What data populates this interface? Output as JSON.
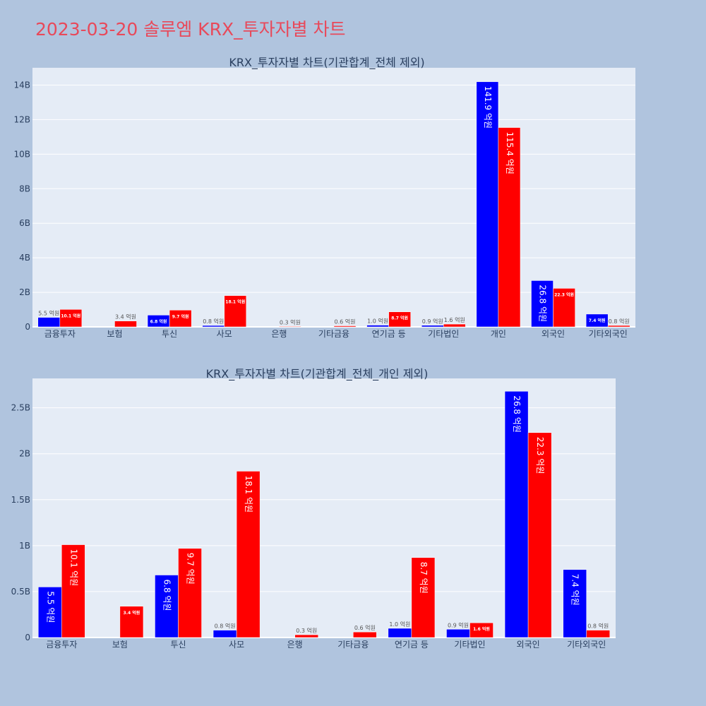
{
  "page": {
    "title": "2023-03-20 솔루엠 KRX_투자자별 차트"
  },
  "colors": {
    "background": "#b0c4de",
    "plot_background": "#e5ecf6",
    "title": "#e8495a",
    "text": "#2a3f5f",
    "series_blue": "#0000ff",
    "series_red": "#ff0000"
  },
  "chart_data": [
    {
      "type": "bar",
      "title": "KRX_투자자별 차트(기관합계_전체 제외)",
      "xlabel": "",
      "ylabel": "",
      "categories": [
        "금융투자",
        "보험",
        "투신",
        "사모",
        "은행",
        "기타금융",
        "연기금 등",
        "기타법인",
        "개인",
        "외국인",
        "기타외국인"
      ],
      "ylim": [
        0,
        15
      ],
      "y_unit": "B",
      "yticks": [
        0,
        2,
        4,
        6,
        8,
        10,
        12,
        14
      ],
      "ytick_labels": [
        "0",
        "2B",
        "4B",
        "6B",
        "8B",
        "10B",
        "12B",
        "14B"
      ],
      "grid": true,
      "legend": "none",
      "series": [
        {
          "color": "#0000ff",
          "values": [
            0.55,
            0,
            0.68,
            0.08,
            0,
            0,
            0.1,
            0.09,
            14.19,
            2.68,
            0.74
          ],
          "labels": [
            "5.5 억원",
            "",
            "6.8 억원",
            "0.8 억원",
            "",
            "",
            "1.0 억원",
            "0.9 억원",
            "141.9 억원",
            "26.8 억원",
            "7.4 억원"
          ]
        },
        {
          "color": "#ff0000",
          "values": [
            1.01,
            0.34,
            0.97,
            1.81,
            0.03,
            0.06,
            0.87,
            0.16,
            11.54,
            2.23,
            0.08
          ],
          "labels": [
            "10.1 억원",
            "3.4 억원",
            "9.7 억원",
            "18.1 억원",
            "0.3 억원",
            "0.6 억원",
            "8.7 억원",
            "1.6 억원",
            "115.4 억원",
            "22.3 억원",
            "0.8 억원"
          ]
        }
      ]
    },
    {
      "type": "bar",
      "title": "KRX_투자자별 차트(기관합계_전체_개인 제외)",
      "xlabel": "",
      "ylabel": "",
      "categories": [
        "금융투자",
        "보험",
        "투신",
        "사모",
        "은행",
        "기타금융",
        "연기금 등",
        "기타법인",
        "외국인",
        "기타외국인"
      ],
      "ylim": [
        0,
        2.82
      ],
      "y_unit": "B",
      "yticks": [
        0,
        0.5,
        1,
        1.5,
        2,
        2.5
      ],
      "ytick_labels": [
        "0",
        "0.5B",
        "1B",
        "1.5B",
        "2B",
        "2.5B"
      ],
      "grid": true,
      "legend": "none",
      "series": [
        {
          "color": "#0000ff",
          "values": [
            0.55,
            0,
            0.68,
            0.08,
            0,
            0,
            0.1,
            0.09,
            2.68,
            0.74
          ],
          "labels": [
            "5.5 억원",
            "",
            "6.8 억원",
            "0.8 억원",
            "",
            "",
            "1.0 억원",
            "0.9 억원",
            "26.8 억원",
            "7.4 억원"
          ]
        },
        {
          "color": "#ff0000",
          "values": [
            1.01,
            0.34,
            0.97,
            1.81,
            0.03,
            0.06,
            0.87,
            0.16,
            2.23,
            0.08
          ],
          "labels": [
            "10.1 억원",
            "3.4 억원",
            "9.7 억원",
            "18.1 억원",
            "0.3 억원",
            "0.6 억원",
            "8.7 억원",
            "1.6 억원",
            "22.3 억원",
            "0.8 억원"
          ]
        }
      ]
    }
  ]
}
